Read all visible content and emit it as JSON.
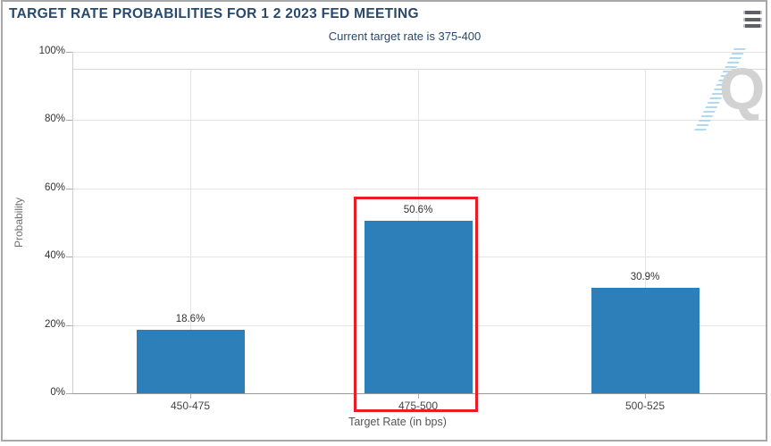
{
  "header": {
    "title": "TARGET RATE PROBABILITIES FOR 1 2 2023 FED MEETING",
    "subtitle": "Current target rate is 375-400"
  },
  "menu": {
    "icon": "hamburger-menu-icon"
  },
  "watermark": {
    "letter": "Q"
  },
  "chart_data": {
    "type": "bar",
    "title": "TARGET RATE PROBABILITIES FOR 1 2 2023 FED MEETING",
    "subtitle": "Current target rate is 375-400",
    "xlabel": "Target Rate (in bps)",
    "ylabel": "Probability",
    "categories": [
      "450-475",
      "475-500",
      "500-525"
    ],
    "values": [
      18.6,
      50.6,
      30.9
    ],
    "value_labels": [
      "18.6%",
      "50.6%",
      "30.9%"
    ],
    "ylim": [
      0,
      100
    ],
    "ytick_values": [
      0,
      20,
      40,
      60,
      80,
      100
    ],
    "ytick_labels": [
      "0%",
      "20%",
      "40%",
      "60%",
      "80%",
      "100%"
    ],
    "grid": true,
    "legend": false,
    "bar_color": "#2c7fb8",
    "highlight": {
      "category": "475-500",
      "index": 1,
      "color": "#ea1c24"
    }
  }
}
